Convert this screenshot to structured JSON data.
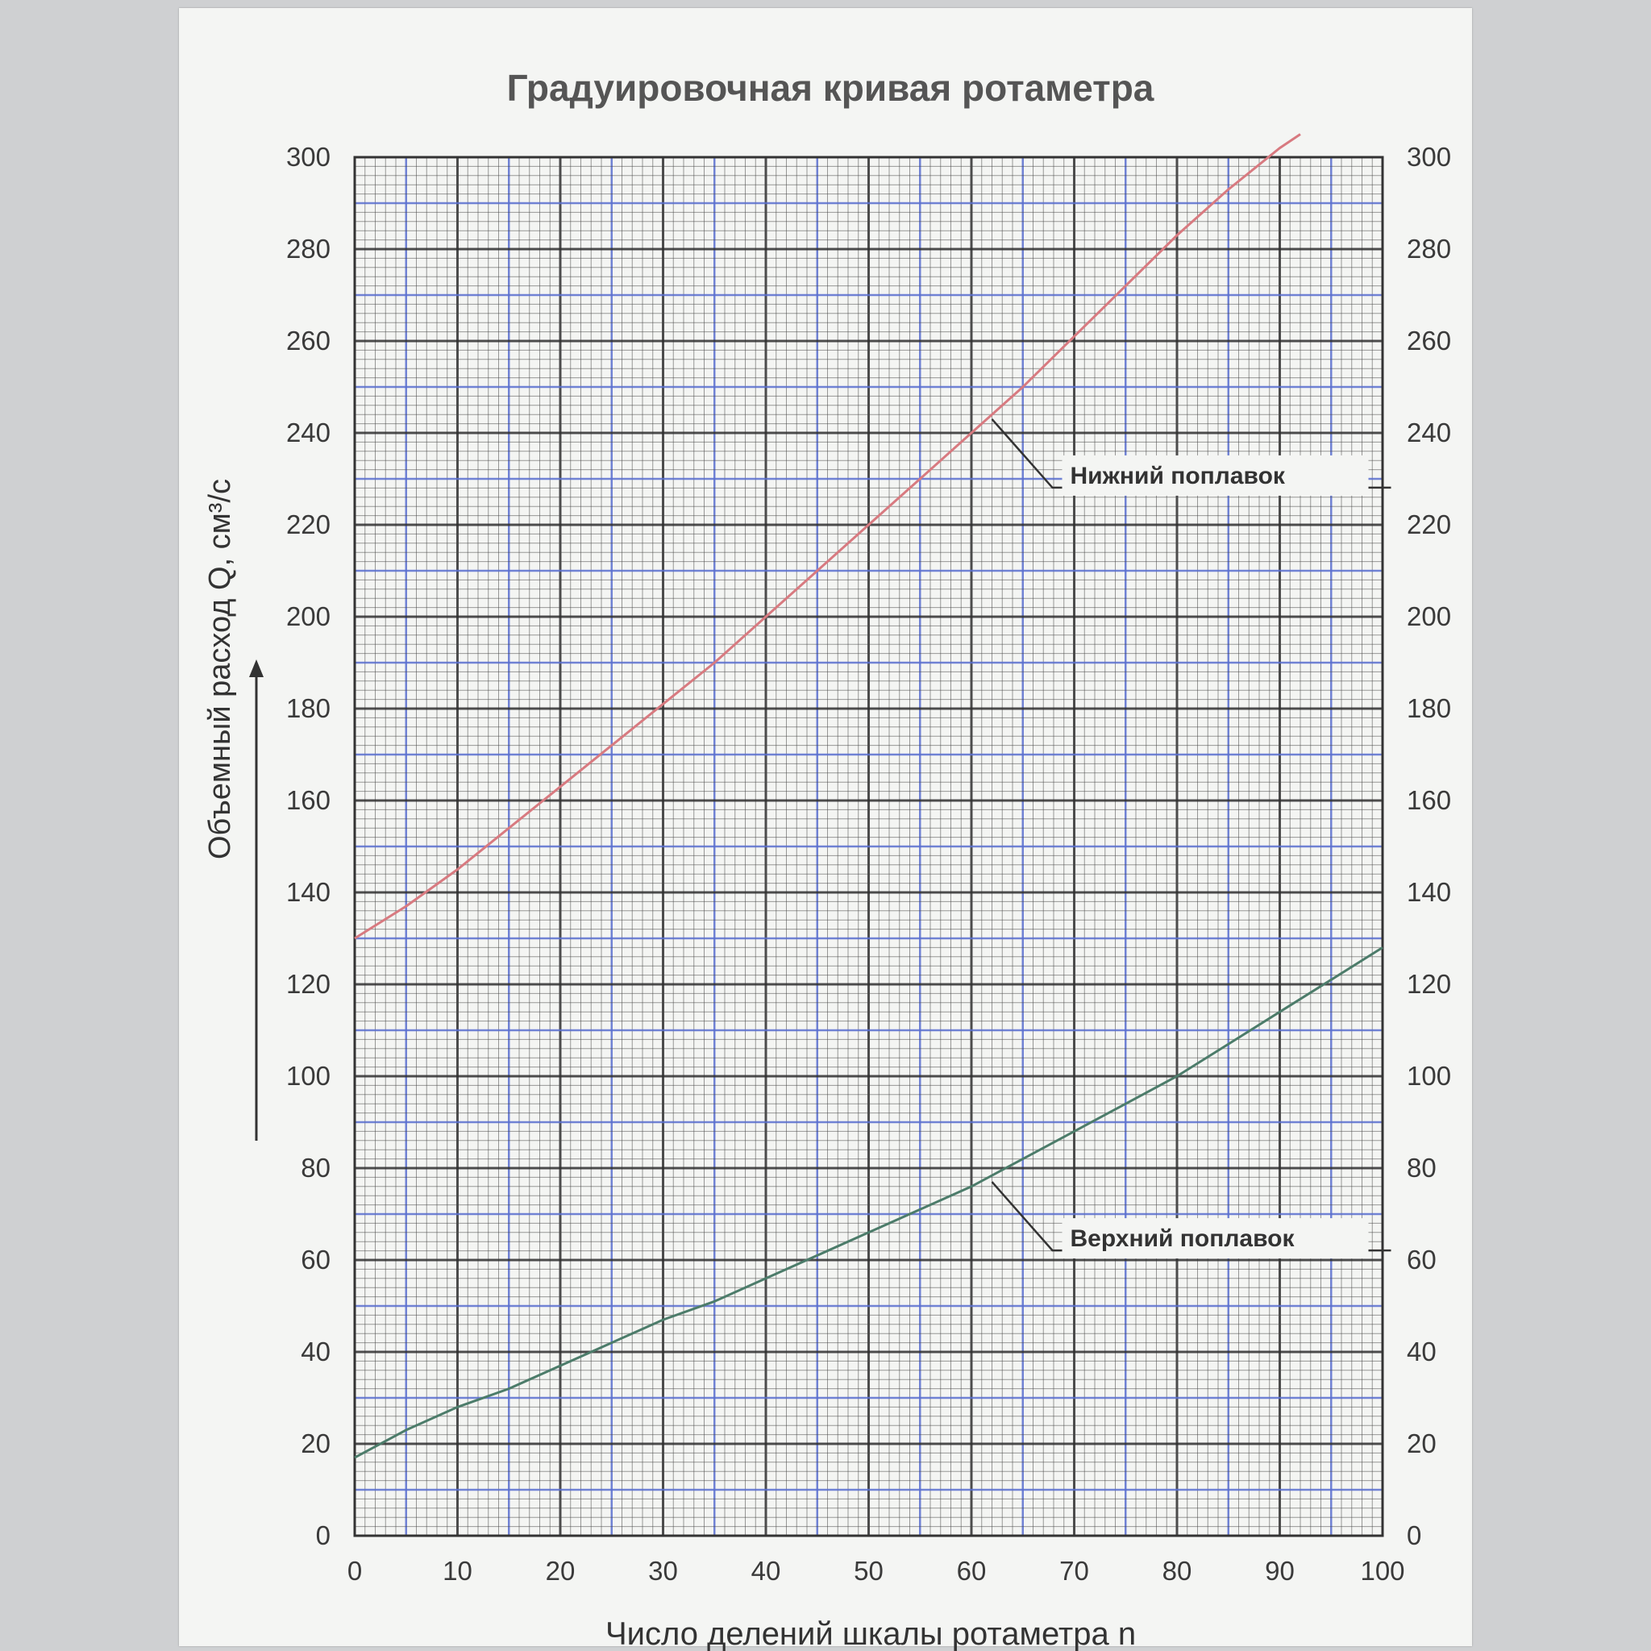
{
  "chart_data": {
    "type": "line",
    "title": "Градуировочная кривая ротаметра",
    "xlabel": "Число делений шкалы ротаметра n",
    "ylabel": "Объемный расход Q, см³/с",
    "xlim": [
      0,
      100
    ],
    "ylim": [
      0,
      300
    ],
    "grid": true,
    "x_ticks": [
      "0",
      "10",
      "20",
      "30",
      "40",
      "50",
      "60",
      "70",
      "80",
      "90",
      "100"
    ],
    "y_ticks": [
      "0",
      "20",
      "40",
      "60",
      "80",
      "100",
      "120",
      "140",
      "160",
      "180",
      "200",
      "220",
      "240",
      "260",
      "280",
      "300"
    ],
    "series": [
      {
        "name": "Нижний поплавок",
        "color": "#d87a80",
        "x": [
          0,
          5,
          10,
          15,
          20,
          25,
          30,
          35,
          40,
          45,
          50,
          55,
          60,
          65,
          70,
          75,
          80,
          85,
          90,
          92
        ],
        "y": [
          130,
          137,
          145,
          154,
          163,
          172,
          181,
          190,
          200,
          210,
          220,
          230,
          240,
          250,
          261,
          272,
          283,
          293,
          302,
          305
        ]
      },
      {
        "name": "Верхний поплавок",
        "color": "#4c7c6a",
        "x": [
          0,
          5,
          10,
          15,
          20,
          25,
          30,
          35,
          40,
          45,
          50,
          55,
          60,
          65,
          70,
          75,
          80,
          85,
          90,
          95,
          100
        ],
        "y": [
          17,
          23,
          28,
          32,
          37,
          42,
          47,
          51,
          56,
          61,
          66,
          71,
          76,
          82,
          88,
          94,
          100,
          107,
          114,
          121,
          128
        ]
      }
    ],
    "annotations": [
      {
        "text": "Нижний поплавок",
        "series": "Нижний поплавок",
        "x": 62,
        "y": 243
      },
      {
        "text": "Верхний поплавок",
        "series": "Верхний поплавок",
        "x": 62,
        "y": 77
      }
    ]
  }
}
